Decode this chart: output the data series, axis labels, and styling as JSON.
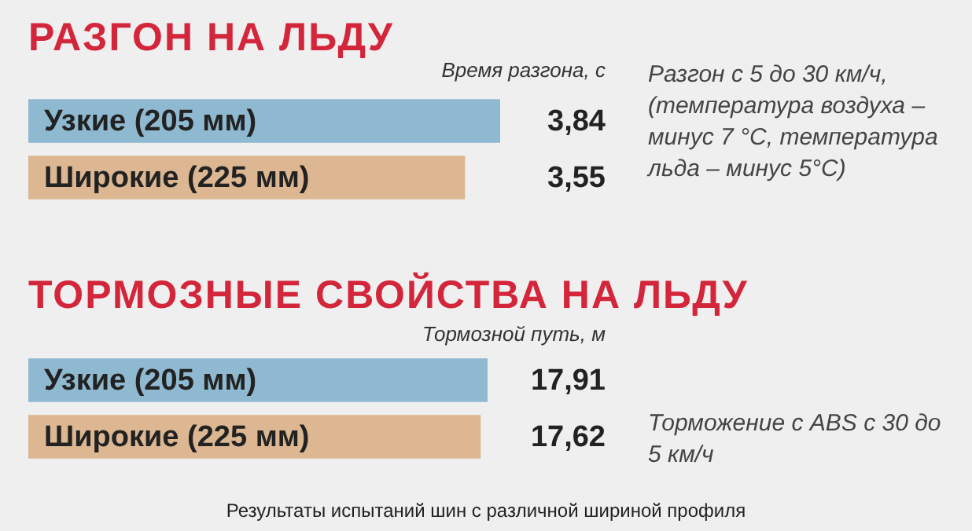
{
  "chart_data": [
    {
      "type": "bar",
      "orientation": "horizontal",
      "title": "РАЗГОН НА ЛЬДУ",
      "xlabel": "Время разгона, с",
      "categories": [
        "Узкие (205 мм)",
        "Широкие (225 мм)"
      ],
      "values": [
        3.84,
        3.55
      ],
      "colors": [
        "#8fb9d0",
        "#dcb792"
      ],
      "value_labels": [
        "3,84",
        "3,55"
      ],
      "annotations": [
        "Разгон с 5 до 30 км/ч, (температура воздуха – минус 7 °C, температура льда – минус 5°C)"
      ]
    },
    {
      "type": "bar",
      "orientation": "horizontal",
      "title": "ТОРМОЗНЫЕ СВОЙСТВА НА ЛЬДУ",
      "xlabel": "Тормозной путь, м",
      "categories": [
        "Узкие (205 мм)",
        "Широкие (225 мм)"
      ],
      "values": [
        17.91,
        17.62
      ],
      "colors": [
        "#8fb9d0",
        "#dcb792"
      ],
      "value_labels": [
        "17,91",
        "17,62"
      ],
      "annotations": [
        "Торможение с ABS с 30 до 5 км/ч",
        "Результаты испытаний шин с различной шириной профиля"
      ]
    }
  ]
}
